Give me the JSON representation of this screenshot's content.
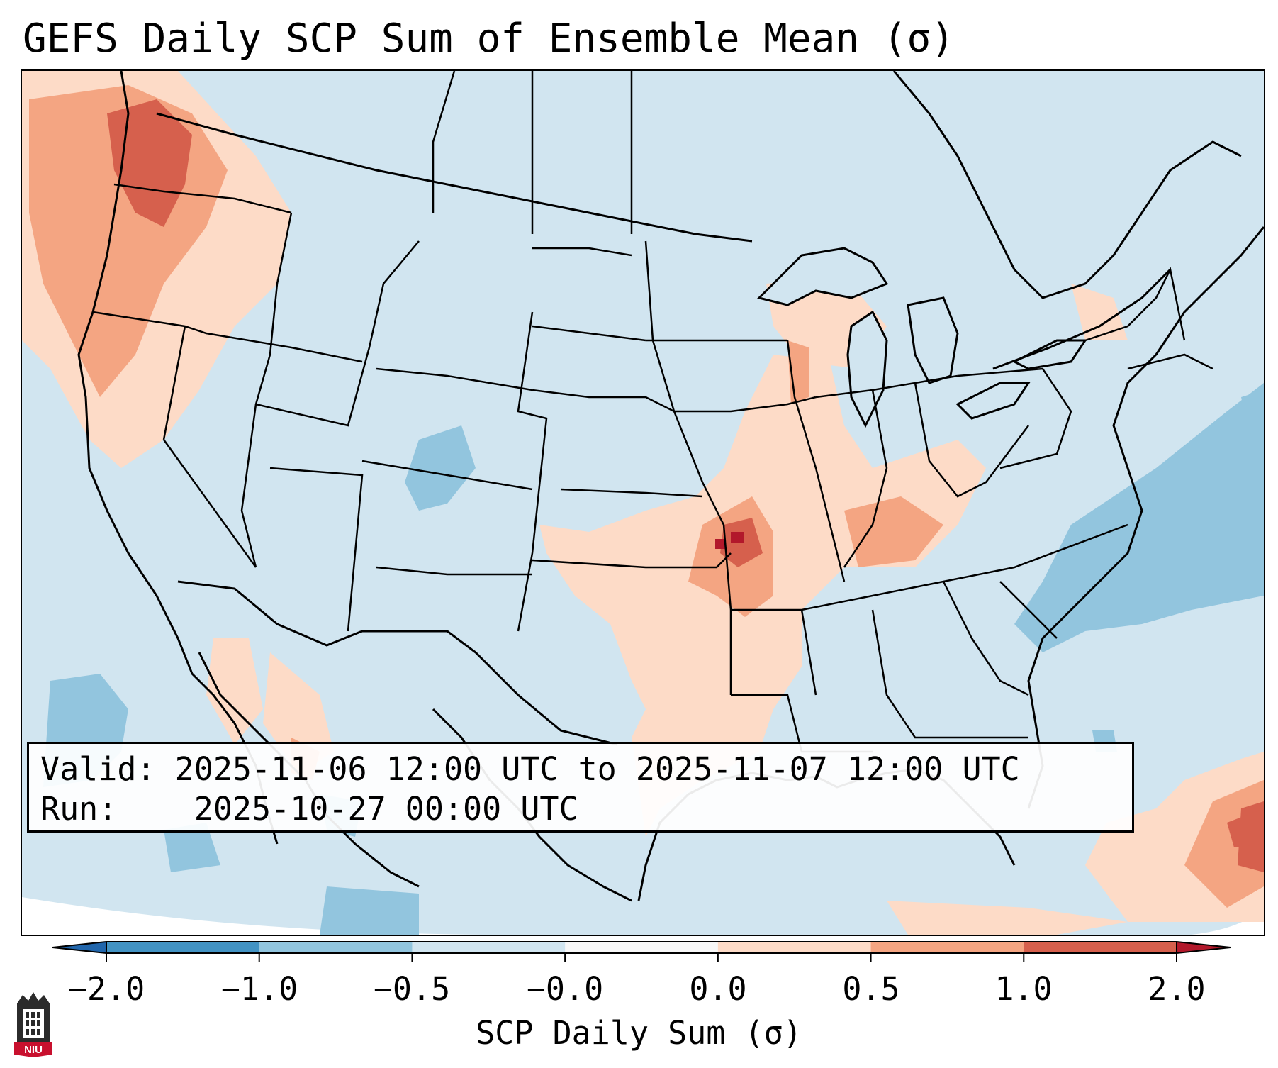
{
  "title": "GEFS Daily SCP Sum of Ensemble Mean (σ)",
  "info": {
    "valid_label": "Valid:",
    "valid_value": "2025-11-06 12:00 UTC to 2025-11-07 12:00 UTC",
    "run_label": "Run:",
    "run_value": "2025-10-27 00:00 UTC"
  },
  "colorbar": {
    "label": "SCP Daily Sum (σ)",
    "ticks": [
      "−2.0",
      "−1.0",
      "−0.5",
      "−0.0",
      "0.0",
      "0.5",
      "1.0",
      "2.0"
    ],
    "colors": [
      "#4393c3",
      "#92c5de",
      "#d1e5f0",
      "#f7f7f7",
      "#fddbc7",
      "#f4a582",
      "#d6604d"
    ],
    "under_color": "#2166ac",
    "over_color": "#b2182b"
  },
  "logo": {
    "text": "NIU",
    "icon": "university-tower-icon"
  }
}
